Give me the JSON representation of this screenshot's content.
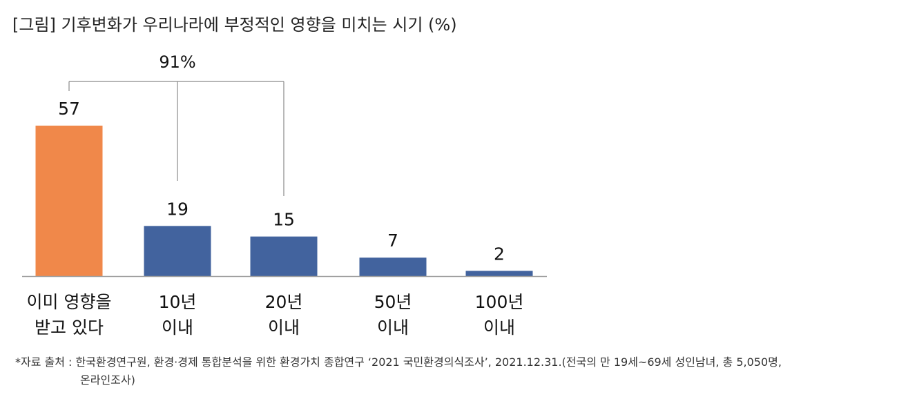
{
  "chart_data": {
    "type": "bar",
    "title": "[그림] 기후변화가 우리나라에 부정적인 영향을 미치는 시기 (%)",
    "categories": [
      [
        "이미 영향을",
        "받고 있다"
      ],
      [
        "10년",
        "이내"
      ],
      [
        "20년",
        "이내"
      ],
      [
        "50년",
        "이내"
      ],
      [
        "100년",
        "이내"
      ]
    ],
    "values": [
      57,
      19,
      15,
      7,
      2
    ],
    "value_labels": [
      "57",
      "19",
      "15",
      "7",
      "2"
    ],
    "colors": {
      "highlight": "#F0884A",
      "default": "#42639E",
      "baseline": "#9E9E9E",
      "bracket": "#8A8A8A"
    },
    "highlight_index": 0,
    "ylim": [
      0,
      60
    ],
    "grid": false,
    "legend": "none",
    "bracket": {
      "label": "91%",
      "spans_categories": [
        0,
        1,
        2
      ]
    },
    "source": [
      "*자료 출처 : 한국환경연구원, 환경·경제 통합분석을 위한 환경가치 종합연구 ‘2021 국민환경의식조사’, 2021.12.31.(전국의 만 19세~69세 성인남녀, 총 5,050명,",
      "온라인조사)"
    ]
  }
}
